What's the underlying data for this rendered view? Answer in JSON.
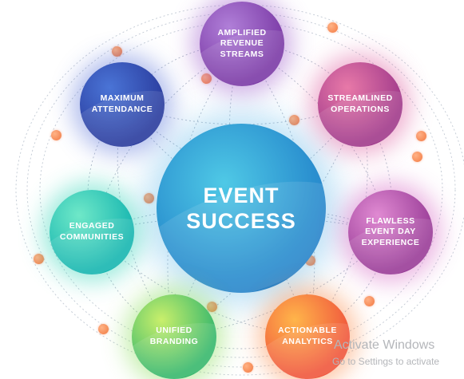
{
  "diagram": {
    "center": {
      "label": "EVENT\nSUCCESS",
      "color": "#2a8fcf"
    },
    "nodes": [
      {
        "id": "amplified-revenue-streams",
        "label": "AMPLIFIED\nREVENUE\nSTREAMS",
        "color": "#8e4bbf"
      },
      {
        "id": "streamlined-operations",
        "label": "STREAMLINED\nOPERATIONS",
        "color": "#c24e97"
      },
      {
        "id": "maximum-attendance",
        "label": "MAXIMUM\nATTENDANCE",
        "color": "#3350b9"
      },
      {
        "id": "engaged-communities",
        "label": "ENGAGED\nCOMMUNITIES",
        "color": "#2cc9b6"
      },
      {
        "id": "flawless-event-day-experience",
        "label": "FLAWLESS\nEVENT DAY\nEXPERIENCE",
        "color": "#b457b0"
      },
      {
        "id": "unified-branding",
        "label": "UNIFIED\nBRANDING",
        "color": "#68c868"
      },
      {
        "id": "actionable-analytics",
        "label": "ACTIONABLE\nANALYTICS",
        "color": "#f5813f"
      }
    ],
    "connector_dot_color": "#f37a43",
    "connector_line_color": "#9aa6b8"
  },
  "watermark": {
    "title": "Activate Windows",
    "subtitle": "Go to Settings to activate"
  }
}
